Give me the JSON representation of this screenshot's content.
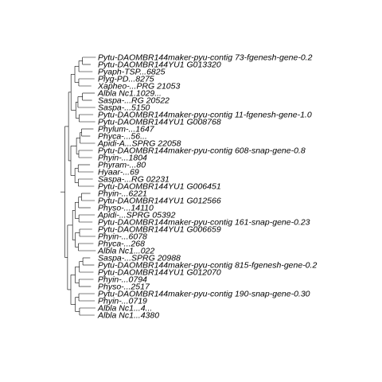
{
  "tree": {
    "line_color": "#000000",
    "text_color": "#000000",
    "tips": [
      "Pytu-DAOMBR144maker-pyu-contig 73-fgenesh-gene-0.2",
      "Pytu-DAOMBR144YU1 G013320",
      "Pyaph-TSP...6825",
      "Plyg-PD...8275",
      "Xapheo-...PRG 21053",
      "Albla Nc1.1029...",
      "Saspa-...RG 20522",
      "Saspa-...5150",
      "Pytu-DAOMBR144maker-pyu-contig 11-fgenesh-gene-1.0",
      "Pytu-DAOMBR144YU1 G008768",
      "Phylum-...1647",
      "Phyca-...56...",
      "Apidi-A...SPRG 22058",
      "Pytu-DAOMBR144maker-pyu-contig 608-snap-gene-0.8",
      "Phyin-...1804",
      "Phyram-...80",
      "Hyaar-...69",
      "Saspa-...RG 02231",
      "Pytu-DAOMBR144YU1 G006451",
      "Phyin-...6221",
      "Pytu-DAOMBR144YU1 G012566",
      "Physo-...14110",
      "Apidi-...SPRG 05392",
      "Pytu-DAOMBR144maker-pyu-contig 161-snap-gene-0.23",
      "Pytu-DAOMBR144YU1 G006659",
      "Phyin-...6078",
      "Phyca-...268",
      "Albla Nc1...022",
      "Saspa-...SPRG 20988",
      "Pytu-DAOMBR144maker-pyu-contig 815-fgenesh-gene-0.2",
      "Pytu-DAOMBR144YU1 G012070",
      "Phyin-...0794",
      "Physo-...2517",
      "Pytu-DAOMBR144maker-pyu-contig 190-snap-gene-0.30",
      "Phyin-...0719",
      "Albla Nc1...4...",
      "Albla Nc1...4380"
    ]
  }
}
